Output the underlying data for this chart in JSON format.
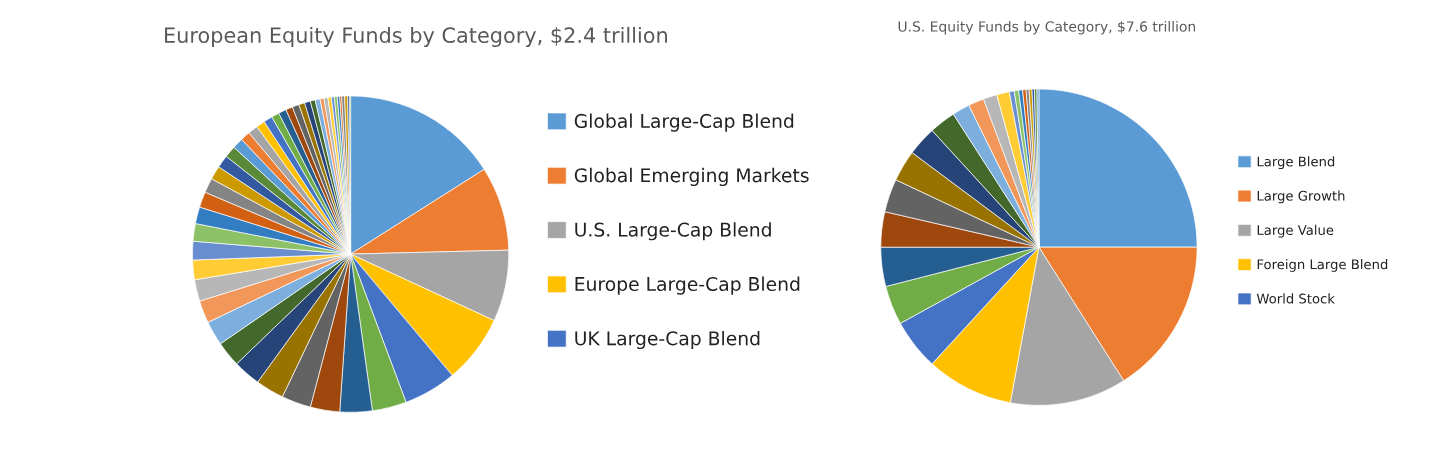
{
  "chart_data": [
    {
      "type": "pie",
      "title": "European Equity Funds by Category, $2.4 trillion",
      "legend": "right",
      "categories": [
        "Global Large-Cap Blend",
        "Global Emerging Markets",
        "U.S. Large-Cap Blend",
        "Europe Large-Cap Blend",
        "UK Large-Cap Blend",
        null,
        null,
        null,
        null,
        null,
        null,
        null,
        null,
        null,
        null,
        null,
        null,
        null,
        null,
        null,
        null,
        null,
        null,
        null,
        null,
        null,
        null,
        null,
        null,
        null,
        null,
        null,
        null,
        null,
        null,
        null,
        null,
        null,
        null,
        null,
        null,
        null,
        null,
        null,
        null,
        null,
        null,
        null
      ],
      "values": [
        16,
        8.6,
        7.3,
        7,
        5.4,
        3.5,
        3.3,
        3,
        3,
        2.9,
        2.8,
        2.6,
        2.5,
        2.3,
        2.2,
        2,
        1.9,
        1.8,
        1.7,
        1.6,
        1.5,
        1.4,
        1.3,
        1.2,
        1.1,
        1,
        1,
        0.9,
        0.9,
        0.8,
        0.8,
        0.7,
        0.7,
        0.6,
        0.6,
        0.5,
        0.5,
        0.4,
        0.4,
        0.35,
        0.3,
        0.3,
        0.25,
        0.2,
        0.3,
        0.3,
        0.2,
        0.1
      ],
      "colors": [
        "#5b9bd5",
        "#ed7d31",
        "#a5a5a5",
        "#ffc000",
        "#4472c4",
        "#70ad47",
        "#255e91",
        "#9e480e",
        "#636363",
        "#997300",
        "#264478",
        "#43682b",
        "#7cafdd",
        "#f1975a",
        "#b7b7b7",
        "#ffcd33",
        "#698ed0",
        "#8cc168",
        "#327dc2",
        "#d26012",
        "#848484",
        "#cc9a00",
        "#335aa1",
        "#5a8a39",
        "#5b9bd5",
        "#ed7d31",
        "#a5a5a5",
        "#ffc000",
        "#4472c4",
        "#70ad47",
        "#255e91",
        "#9e480e",
        "#636363",
        "#997300",
        "#264478",
        "#43682b",
        "#7cafdd",
        "#f1975a",
        "#b7b7b7",
        "#ffcd33",
        "#698ed0",
        "#8cc168",
        "#327dc2",
        "#d26012",
        "#848484",
        "#cc9a00",
        "#335aa1",
        "#5a8a39"
      ]
    },
    {
      "type": "pie",
      "title": "U.S. Equity Funds by Category, $7.6 trillion",
      "legend": "right",
      "categories": [
        "Large Blend",
        "Large Growth",
        "Large Value",
        "Foreign Large Blend",
        "World Stock",
        null,
        null,
        null,
        null,
        null,
        null,
        null,
        null,
        null,
        null,
        null,
        null,
        null,
        null,
        null,
        null,
        null,
        null,
        null,
        null
      ],
      "values": [
        25,
        16,
        11.9,
        8.9,
        5.2,
        4,
        4,
        3.6,
        3.4,
        3.2,
        3,
        2.7,
        1.8,
        1.6,
        1.4,
        1.3,
        0.5,
        0.45,
        0.4,
        0.35,
        0.3,
        0.3,
        0.25,
        0.25,
        0.2
      ],
      "colors": [
        "#5b9bd5",
        "#ed7d31",
        "#a5a5a5",
        "#ffc000",
        "#4472c4",
        "#70ad47",
        "#255e91",
        "#9e480e",
        "#636363",
        "#997300",
        "#264478",
        "#43682b",
        "#7cafdd",
        "#f1975a",
        "#b7b7b7",
        "#ffcd33",
        "#698ed0",
        "#8cc168",
        "#327dc2",
        "#d26012",
        "#848484",
        "#cc9a00",
        "#335aa1",
        "#5a8a39",
        "#5b9bd5"
      ]
    }
  ]
}
